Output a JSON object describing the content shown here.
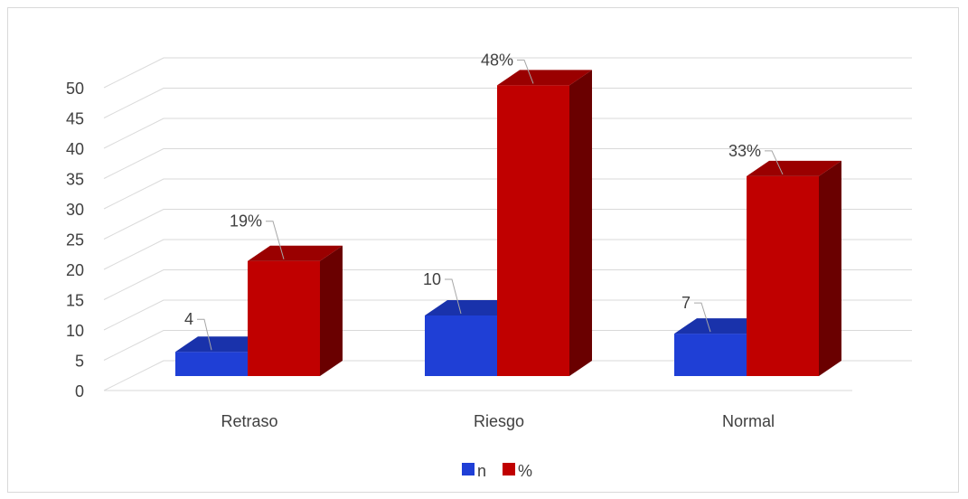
{
  "chart_data": {
    "type": "bar",
    "three_d": true,
    "categories": [
      "Retraso",
      "Riesgo",
      "Normal"
    ],
    "series": [
      {
        "name": "n",
        "values": [
          4,
          10,
          7
        ],
        "labels": [
          "4",
          "10",
          "7"
        ],
        "color": "#1f3fd6"
      },
      {
        "name": "%",
        "values": [
          19,
          48,
          33
        ],
        "labels": [
          "19%",
          "48%",
          "33%"
        ],
        "color": "#c00000"
      }
    ],
    "y_ticks": [
      "0",
      "5",
      "10",
      "15",
      "20",
      "25",
      "30",
      "35",
      "40",
      "45",
      "50"
    ],
    "ylim": [
      0,
      55
    ],
    "grid": true,
    "legend_position": "bottom"
  }
}
